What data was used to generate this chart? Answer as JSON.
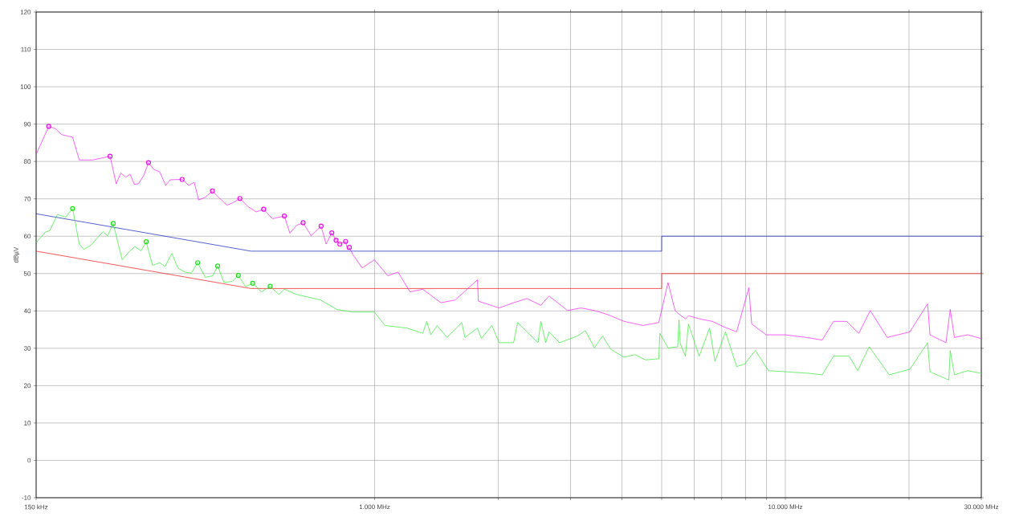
{
  "chart_data": {
    "type": "line",
    "ylabel": "dBµV",
    "log": "x",
    "grid": true,
    "xlim": [
      150,
      30000
    ],
    "ylim": [
      -10,
      120
    ],
    "xticks": [
      {
        "value": 150,
        "label": "150 kHz"
      },
      {
        "value": 1000,
        "label": "1.000 MHz"
      },
      {
        "value": 2000,
        "label": null
      },
      {
        "value": 3000,
        "label": null
      },
      {
        "value": 4000,
        "label": null
      },
      {
        "value": 5000,
        "label": null
      },
      {
        "value": 6000,
        "label": null
      },
      {
        "value": 7000,
        "label": null
      },
      {
        "value": 8000,
        "label": null
      },
      {
        "value": 9000,
        "label": null
      },
      {
        "value": 10000,
        "label": "10.000 MHz"
      },
      {
        "value": 20000,
        "label": null
      },
      {
        "value": 30000,
        "label": "30.000 MHz"
      }
    ],
    "yticks": [
      -10,
      0,
      10,
      20,
      30,
      40,
      50,
      60,
      70,
      80,
      90,
      100,
      110,
      120
    ],
    "series": [
      {
        "color": "#0a1fb5",
        "x": [
          150,
          500,
          5000,
          5000,
          30000
        ],
        "values": [
          66,
          56,
          56,
          60,
          60
        ]
      },
      {
        "color": "#ee1111",
        "x": [
          150,
          500,
          5000,
          5000,
          30000
        ],
        "values": [
          56,
          46,
          46,
          50,
          50
        ]
      },
      {
        "color": "#f020f0",
        "x": [
          150,
          161,
          167,
          173,
          184,
          191,
          206,
          227,
          235,
          241,
          248,
          254,
          260,
          266,
          274,
          281.6,
          290,
          300,
          310,
          318,
          340,
          353,
          364,
          373,
          387,
          403,
          417,
          437,
          453,
          470,
          492,
          515,
          537,
          564,
          603,
          622,
          646,
          670,
          701,
          741,
          762,
          787,
          806,
          823,
          850,
          859,
          868,
          885,
          933,
          999,
          1077,
          1140,
          1220,
          1310,
          1450,
          1570,
          1780,
          1790,
          2010,
          2180,
          2350,
          2540,
          2660,
          2950,
          3180,
          3430,
          3700,
          4050,
          4500,
          4920,
          5180,
          5390,
          5470,
          5710,
          5810,
          6170,
          6640,
          7060,
          7610,
          8150,
          8280,
          8980,
          9990,
          11260,
          12300,
          13100,
          14100,
          15100,
          16100,
          17700,
          20100,
          22200,
          22500,
          24600,
          25200,
          25800,
          27800,
          30000
        ],
        "values": [
          81.9,
          89.4,
          88.8,
          87.2,
          86.5,
          80.4,
          80.4,
          81.4,
          74.0,
          76.9,
          75.8,
          76.6,
          73.9,
          74.0,
          76.2,
          79.7,
          77.9,
          77.2,
          73.6,
          75.1,
          75.2,
          73.6,
          74.4,
          69.7,
          70.4,
          72.1,
          70.4,
          68.3,
          69.0,
          70.1,
          67.9,
          66.5,
          67.2,
          64.7,
          65.4,
          60.8,
          62.9,
          63.6,
          60.1,
          62.7,
          57.9,
          60.9,
          58.9,
          57.9,
          58.6,
          56.5,
          57.0,
          55.1,
          51.5,
          53.7,
          49.4,
          50.4,
          45.1,
          45.8,
          42.2,
          42.9,
          48.3,
          42.6,
          40.8,
          42.2,
          43.3,
          41.5,
          44.0,
          40.1,
          40.8,
          40.1,
          39.0,
          37.2,
          36.1,
          36.9,
          47.6,
          40.1,
          39.4,
          37.9,
          38.7,
          37.9,
          37.2,
          35.8,
          34.4,
          46.2,
          36.5,
          33.6,
          33.6,
          32.9,
          32.2,
          37.2,
          37.2,
          34.0,
          40.1,
          32.9,
          34.4,
          41.9,
          33.6,
          31.5,
          40.4,
          32.9,
          33.6,
          32.6
        ]
      },
      {
        "color": "#33e633",
        "x": [
          150,
          158,
          162,
          169,
          177,
          184,
          191,
          196,
          204,
          218,
          224,
          231,
          243,
          254,
          261,
          270,
          278,
          288,
          300,
          309,
          321,
          332,
          345,
          358,
          371,
          387,
          404,
          415,
          430,
          450,
          466,
          485,
          505,
          531,
          557,
          585,
          603,
          646,
          696,
          740,
          809,
          885,
          999,
          1060,
          1200,
          1310,
          1340,
          1370,
          1420,
          1500,
          1630,
          1660,
          1780,
          1820,
          1930,
          2010,
          2180,
          2230,
          2350,
          2500,
          2540,
          2610,
          2660,
          2820,
          3120,
          3260,
          3430,
          3590,
          3760,
          4050,
          4300,
          4570,
          4920,
          4950,
          5180,
          5470,
          5510,
          5550,
          5710,
          5810,
          6170,
          6540,
          6740,
          7150,
          7610,
          7970,
          8450,
          9100,
          10100,
          11400,
          12300,
          13100,
          14300,
          15000,
          16000,
          17900,
          20100,
          22200,
          22500,
          25000,
          25200,
          25800,
          27800,
          30000
        ],
        "values": [
          58.3,
          61.1,
          61.5,
          65.8,
          65.1,
          67.4,
          57.9,
          56.5,
          57.6,
          61.2,
          60.1,
          63.4,
          53.7,
          56.1,
          57.2,
          56.1,
          58.5,
          52.2,
          52.9,
          51.9,
          55.4,
          51.5,
          50.4,
          50.1,
          52.9,
          49.0,
          49.4,
          52.0,
          47.6,
          47.9,
          49.5,
          46.5,
          47.4,
          45.1,
          46.6,
          44.4,
          45.8,
          44.4,
          43.6,
          42.9,
          40.4,
          39.7,
          39.7,
          36.1,
          35.4,
          34.0,
          37.2,
          33.6,
          36.1,
          32.9,
          36.9,
          32.9,
          35.4,
          32.6,
          36.1,
          31.5,
          31.5,
          36.9,
          34.4,
          31.5,
          37.2,
          31.5,
          34.4,
          31.5,
          33.3,
          34.7,
          30.1,
          33.3,
          29.7,
          27.6,
          28.3,
          26.9,
          27.2,
          34.0,
          30.1,
          30.4,
          37.6,
          31.2,
          27.9,
          36.5,
          27.9,
          35.4,
          26.5,
          34.4,
          25.1,
          25.8,
          29.4,
          24.0,
          23.7,
          23.3,
          22.9,
          27.9,
          27.9,
          24.0,
          30.4,
          22.9,
          24.4,
          31.5,
          23.7,
          21.5,
          29.4,
          22.9,
          24.0,
          23.3
        ]
      },
      {
        "type": "scatter",
        "marker": "circle",
        "color": "#e010e0",
        "x": [
          161,
          227,
          281.6,
          340,
          403,
          470,
          537,
          603,
          670,
          741,
          787,
          806,
          823,
          850,
          868
        ],
        "values": [
          89.4,
          81.4,
          79.7,
          75.2,
          72.1,
          70.1,
          67.2,
          65.4,
          63.6,
          62.7,
          60.9,
          58.9,
          57.9,
          58.6,
          57.0
        ]
      },
      {
        "type": "scatter",
        "marker": "circle",
        "color": "#22d822",
        "x": [
          184,
          231,
          278,
          371,
          415,
          466,
          505,
          557
        ],
        "values": [
          67.4,
          63.4,
          58.5,
          52.9,
          52.0,
          49.5,
          47.4,
          46.6
        ]
      }
    ]
  }
}
